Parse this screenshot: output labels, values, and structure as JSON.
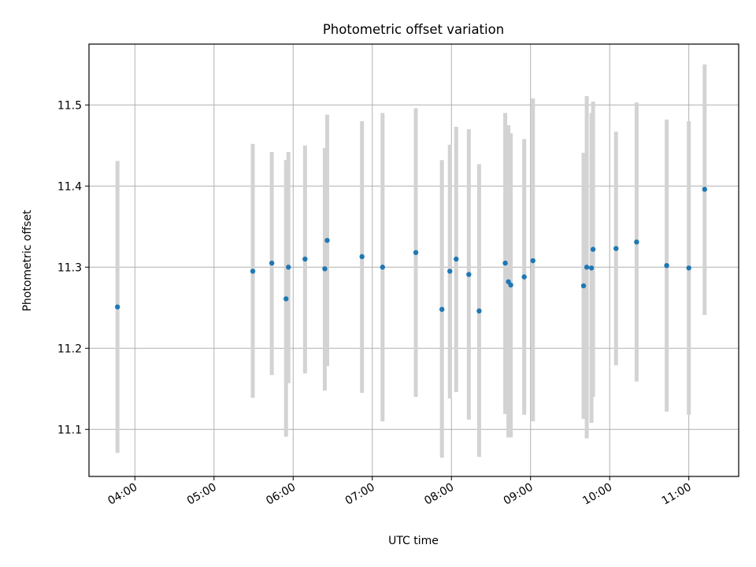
{
  "chart_data": {
    "type": "scatter",
    "title": "Photometric offset variation",
    "xlabel": "UTC time",
    "ylabel": "Photometric offset",
    "x_unit": "hours (UTC)",
    "xlim": [
      3.42,
      11.63
    ],
    "ylim": [
      11.042,
      11.575
    ],
    "x_ticks": [
      4,
      5,
      6,
      7,
      8,
      9,
      10,
      11
    ],
    "x_tick_labels": [
      "04:00",
      "05:00",
      "06:00",
      "07:00",
      "08:00",
      "09:00",
      "10:00",
      "11:00"
    ],
    "y_ticks": [
      11.1,
      11.2,
      11.3,
      11.4,
      11.5
    ],
    "y_tick_labels": [
      "11.1",
      "11.2",
      "11.3",
      "11.4",
      "11.5"
    ],
    "grid": true,
    "marker_color": "#1f77b4",
    "errorbar_color": "#d3d3d3",
    "series": [
      {
        "points": [
          {
            "x": 3.78,
            "y": 11.251,
            "ylow": 11.071,
            "yhigh": 11.431
          },
          {
            "x": 5.49,
            "y": 11.295,
            "ylow": 11.139,
            "yhigh": 11.452
          },
          {
            "x": 5.73,
            "y": 11.305,
            "ylow": 11.167,
            "yhigh": 11.442
          },
          {
            "x": 5.91,
            "y": 11.261,
            "ylow": 11.091,
            "yhigh": 11.432
          },
          {
            "x": 5.94,
            "y": 11.3,
            "ylow": 11.157,
            "yhigh": 11.442
          },
          {
            "x": 6.15,
            "y": 11.31,
            "ylow": 11.169,
            "yhigh": 11.45
          },
          {
            "x": 6.4,
            "y": 11.298,
            "ylow": 11.148,
            "yhigh": 11.447
          },
          {
            "x": 6.43,
            "y": 11.333,
            "ylow": 11.178,
            "yhigh": 11.488
          },
          {
            "x": 6.87,
            "y": 11.313,
            "ylow": 11.145,
            "yhigh": 11.48
          },
          {
            "x": 7.13,
            "y": 11.3,
            "ylow": 11.11,
            "yhigh": 11.49
          },
          {
            "x": 7.55,
            "y": 11.318,
            "ylow": 11.14,
            "yhigh": 11.496
          },
          {
            "x": 7.88,
            "y": 11.248,
            "ylow": 11.065,
            "yhigh": 11.432
          },
          {
            "x": 7.98,
            "y": 11.295,
            "ylow": 11.138,
            "yhigh": 11.451
          },
          {
            "x": 8.06,
            "y": 11.31,
            "ylow": 11.146,
            "yhigh": 11.473
          },
          {
            "x": 8.22,
            "y": 11.291,
            "ylow": 11.112,
            "yhigh": 11.47
          },
          {
            "x": 8.35,
            "y": 11.246,
            "ylow": 11.066,
            "yhigh": 11.427
          },
          {
            "x": 8.68,
            "y": 11.305,
            "ylow": 11.119,
            "yhigh": 11.49
          },
          {
            "x": 8.72,
            "y": 11.282,
            "ylow": 11.09,
            "yhigh": 11.475
          },
          {
            "x": 8.75,
            "y": 11.278,
            "ylow": 11.09,
            "yhigh": 11.465
          },
          {
            "x": 8.92,
            "y": 11.288,
            "ylow": 11.118,
            "yhigh": 11.458
          },
          {
            "x": 9.03,
            "y": 11.308,
            "ylow": 11.11,
            "yhigh": 11.508
          },
          {
            "x": 9.67,
            "y": 11.277,
            "ylow": 11.113,
            "yhigh": 11.441
          },
          {
            "x": 9.71,
            "y": 11.3,
            "ylow": 11.089,
            "yhigh": 11.511
          },
          {
            "x": 9.77,
            "y": 11.299,
            "ylow": 11.108,
            "yhigh": 11.49
          },
          {
            "x": 9.79,
            "y": 11.322,
            "ylow": 11.14,
            "yhigh": 11.504
          },
          {
            "x": 10.08,
            "y": 11.323,
            "ylow": 11.179,
            "yhigh": 11.467
          },
          {
            "x": 10.34,
            "y": 11.331,
            "ylow": 11.159,
            "yhigh": 11.503
          },
          {
            "x": 10.72,
            "y": 11.302,
            "ylow": 11.122,
            "yhigh": 11.482
          },
          {
            "x": 11.0,
            "y": 11.299,
            "ylow": 11.118,
            "yhigh": 11.48
          },
          {
            "x": 11.2,
            "y": 11.396,
            "ylow": 11.241,
            "yhigh": 11.55
          }
        ]
      }
    ]
  }
}
